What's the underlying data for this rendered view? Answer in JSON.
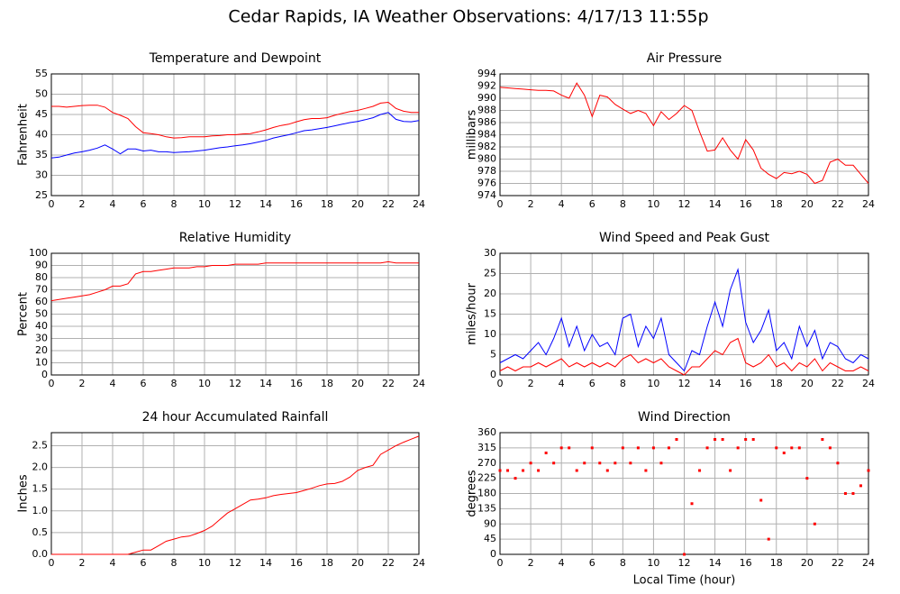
{
  "title": "Cedar Rapids, IA Weather Observations: 4/17/13 11:55p",
  "chart_data": [
    {
      "type": "line",
      "title": "Temperature and Dewpoint",
      "ylabel": "Fahrenheit",
      "x": [
        0,
        0.5,
        1,
        1.5,
        2,
        2.5,
        3,
        3.5,
        4,
        4.5,
        5,
        5.5,
        6,
        6.5,
        7,
        7.5,
        8,
        8.5,
        9,
        9.5,
        10,
        10.5,
        11,
        11.5,
        12,
        12.5,
        13,
        13.5,
        14,
        14.5,
        15,
        15.5,
        16,
        16.5,
        17,
        17.5,
        18,
        18.5,
        19,
        19.5,
        20,
        20.5,
        21,
        21.5,
        22,
        22.5,
        23,
        23.5,
        24
      ],
      "series": [
        {
          "color": "#ff0000",
          "values": [
            47,
            47,
            46.8,
            47,
            47.2,
            47.3,
            47.3,
            46.8,
            45.5,
            44.8,
            44,
            42,
            40.5,
            40.3,
            40,
            39.5,
            39.2,
            39.3,
            39.5,
            39.5,
            39.5,
            39.7,
            39.8,
            40,
            40,
            40.2,
            40.3,
            40.7,
            41.2,
            41.8,
            42.3,
            42.6,
            43.2,
            43.7,
            44,
            44,
            44.2,
            44.8,
            45.3,
            45.7,
            46,
            46.5,
            47,
            47.8,
            48,
            46.5,
            45.8,
            45.5,
            45.5
          ]
        },
        {
          "color": "#0000ff",
          "values": [
            34.3,
            34.5,
            35,
            35.5,
            35.8,
            36.2,
            36.7,
            37.5,
            36.5,
            35.3,
            36.5,
            36.5,
            36,
            36.2,
            35.8,
            35.8,
            35.6,
            35.7,
            35.8,
            36,
            36.2,
            36.5,
            36.8,
            37,
            37.3,
            37.5,
            37.8,
            38.2,
            38.6,
            39.2,
            39.6,
            40,
            40.5,
            41,
            41.2,
            41.5,
            41.8,
            42.2,
            42.6,
            43,
            43.3,
            43.7,
            44.2,
            45,
            45.5,
            43.8,
            43.3,
            43.2,
            43.5
          ]
        }
      ],
      "xlim": [
        0,
        24
      ],
      "xticks": [
        0,
        2,
        4,
        6,
        8,
        10,
        12,
        14,
        16,
        18,
        20,
        22,
        24
      ],
      "ylim": [
        25,
        55
      ],
      "yticks": [
        25,
        30,
        35,
        40,
        45,
        50,
        55
      ],
      "grid": true
    },
    {
      "type": "line",
      "title": "Air Pressure",
      "ylabel": "millibars",
      "x": [
        0,
        0.5,
        1,
        1.5,
        2,
        2.5,
        3,
        3.5,
        4,
        4.5,
        5,
        5.5,
        6,
        6.5,
        7,
        7.5,
        8,
        8.5,
        9,
        9.5,
        10,
        10.5,
        11,
        11.5,
        12,
        12.5,
        13,
        13.5,
        14,
        14.5,
        15,
        15.5,
        16,
        16.5,
        17,
        17.5,
        18,
        18.5,
        19,
        19.5,
        20,
        20.5,
        21,
        21.5,
        22,
        22.5,
        23,
        23.5,
        24
      ],
      "series": [
        {
          "color": "#ff0000",
          "values": [
            991.8,
            991.7,
            991.6,
            991.5,
            991.4,
            991.3,
            991.3,
            991.2,
            990.5,
            990,
            992.5,
            990.5,
            987,
            990.5,
            990.2,
            989,
            988.2,
            987.5,
            988,
            987.5,
            985.5,
            987.8,
            986.5,
            987.5,
            988.8,
            988,
            984.5,
            981.3,
            981.5,
            983.5,
            981.5,
            980,
            983.2,
            981.5,
            978.5,
            977.5,
            976.8,
            977.8,
            977.6,
            978,
            977.5,
            976,
            976.5,
            979.5,
            980,
            979,
            979,
            977.5,
            976
          ]
        }
      ],
      "xlim": [
        0,
        24
      ],
      "xticks": [
        0,
        2,
        4,
        6,
        8,
        10,
        12,
        14,
        16,
        18,
        20,
        22,
        24
      ],
      "ylim": [
        974,
        994
      ],
      "yticks": [
        974,
        976,
        978,
        980,
        982,
        984,
        986,
        988,
        990,
        992,
        994
      ],
      "grid": true
    },
    {
      "type": "line",
      "title": "Relative Humidity",
      "ylabel": "Percent",
      "x": [
        0,
        0.5,
        1,
        1.5,
        2,
        2.5,
        3,
        3.5,
        4,
        4.5,
        5,
        5.5,
        6,
        6.5,
        7,
        7.5,
        8,
        8.5,
        9,
        9.5,
        10,
        10.5,
        11,
        11.5,
        12,
        12.5,
        13,
        13.5,
        14,
        14.5,
        15,
        15.5,
        16,
        16.5,
        17,
        17.5,
        18,
        18.5,
        19,
        19.5,
        20,
        20.5,
        21,
        21.5,
        22,
        22.5,
        23,
        23.5,
        24
      ],
      "series": [
        {
          "color": "#ff0000",
          "values": [
            61,
            62,
            63,
            64,
            65,
            66,
            68,
            70,
            73,
            73,
            75,
            83,
            85,
            85,
            86,
            87,
            88,
            88,
            88,
            89,
            89,
            90,
            90,
            90,
            91,
            91,
            91,
            91,
            92,
            92,
            92,
            92,
            92,
            92,
            92,
            92,
            92,
            92,
            92,
            92,
            92,
            92,
            92,
            92,
            93,
            92,
            92,
            92,
            92
          ]
        }
      ],
      "xlim": [
        0,
        24
      ],
      "xticks": [
        0,
        2,
        4,
        6,
        8,
        10,
        12,
        14,
        16,
        18,
        20,
        22,
        24
      ],
      "ylim": [
        0,
        100
      ],
      "yticks": [
        0,
        10,
        20,
        30,
        40,
        50,
        60,
        70,
        80,
        90,
        100
      ],
      "grid": true
    },
    {
      "type": "line",
      "title": "Wind Speed and Peak Gust",
      "ylabel": "miles/hour",
      "x": [
        0,
        0.5,
        1,
        1.5,
        2,
        2.5,
        3,
        3.5,
        4,
        4.5,
        5,
        5.5,
        6,
        6.5,
        7,
        7.5,
        8,
        8.5,
        9,
        9.5,
        10,
        10.5,
        11,
        11.5,
        12,
        12.5,
        13,
        13.5,
        14,
        14.5,
        15,
        15.5,
        16,
        16.5,
        17,
        17.5,
        18,
        18.5,
        19,
        19.5,
        20,
        20.5,
        21,
        21.5,
        22,
        22.5,
        23,
        23.5,
        24
      ],
      "series": [
        {
          "color": "#0000ff",
          "values": [
            3,
            4,
            5,
            4,
            6,
            8,
            5,
            9,
            14,
            7,
            12,
            6,
            10,
            7,
            8,
            5,
            14,
            15,
            7,
            12,
            9,
            14,
            5,
            3,
            1,
            6,
            5,
            12,
            18,
            12,
            21,
            26,
            13,
            8,
            11,
            16,
            6,
            8,
            4,
            12,
            7,
            11,
            4,
            8,
            7,
            4,
            3,
            5,
            4
          ]
        },
        {
          "color": "#ff0000",
          "values": [
            1,
            2,
            1,
            2,
            2,
            3,
            2,
            3,
            4,
            2,
            3,
            2,
            3,
            2,
            3,
            2,
            4,
            5,
            3,
            4,
            3,
            4,
            2,
            1,
            0,
            2,
            2,
            4,
            6,
            5,
            8,
            9,
            3,
            2,
            3,
            5,
            2,
            3,
            1,
            3,
            2,
            4,
            1,
            3,
            2,
            1,
            1,
            2,
            1
          ]
        }
      ],
      "xlim": [
        0,
        24
      ],
      "xticks": [
        0,
        2,
        4,
        6,
        8,
        10,
        12,
        14,
        16,
        18,
        20,
        22,
        24
      ],
      "ylim": [
        0,
        30
      ],
      "yticks": [
        0,
        5,
        10,
        15,
        20,
        25,
        30
      ],
      "grid": true
    },
    {
      "type": "line",
      "title": "24 hour Accumulated Rainfall",
      "ylabel": "Inches",
      "x": [
        0,
        0.5,
        1,
        1.5,
        2,
        2.5,
        3,
        3.5,
        4,
        4.5,
        5,
        5.5,
        6,
        6.5,
        7,
        7.5,
        8,
        8.5,
        9,
        9.5,
        10,
        10.5,
        11,
        11.5,
        12,
        12.5,
        13,
        13.5,
        14,
        14.5,
        15,
        15.5,
        16,
        16.5,
        17,
        17.5,
        18,
        18.5,
        19,
        19.5,
        20,
        20.5,
        21,
        21.5,
        22,
        22.5,
        23,
        23.5,
        24
      ],
      "series": [
        {
          "color": "#ff0000",
          "values": [
            0,
            0,
            0,
            0,
            0,
            0,
            0,
            0,
            0,
            0,
            0,
            0.05,
            0.1,
            0.1,
            0.2,
            0.3,
            0.35,
            0.4,
            0.42,
            0.48,
            0.55,
            0.65,
            0.8,
            0.95,
            1.05,
            1.15,
            1.25,
            1.27,
            1.3,
            1.35,
            1.38,
            1.4,
            1.42,
            1.47,
            1.52,
            1.58,
            1.62,
            1.63,
            1.68,
            1.78,
            1.93,
            2.0,
            2.05,
            2.3,
            2.4,
            2.5,
            2.58,
            2.65,
            2.72
          ]
        }
      ],
      "xlim": [
        0,
        24
      ],
      "xticks": [
        0,
        2,
        4,
        6,
        8,
        10,
        12,
        14,
        16,
        18,
        20,
        22,
        24
      ],
      "ylim": [
        0,
        2.8
      ],
      "yticks": [
        {
          "value": 0,
          "label": "0.0"
        },
        0.5,
        {
          "value": 1,
          "label": "1.0"
        },
        1.5,
        {
          "value": 2,
          "label": "2.0"
        },
        2.5
      ],
      "grid": true
    },
    {
      "type": "scatter",
      "title": "Wind Direction",
      "ylabel": "degrees",
      "xlabel": "Local Time (hour)",
      "x": [
        0,
        0.5,
        1,
        1.5,
        2,
        2.5,
        3,
        3.5,
        4,
        4.5,
        5,
        5.5,
        6,
        6.5,
        7,
        7.5,
        8,
        8.5,
        9,
        9.5,
        10,
        10.5,
        11,
        11.5,
        12,
        12.5,
        13,
        13.5,
        14,
        14.5,
        15,
        15.5,
        16,
        16.5,
        17,
        17.5,
        18,
        18.5,
        19,
        19.5,
        20,
        20.5,
        21,
        21.5,
        22,
        22.5,
        23,
        23.5,
        24
      ],
      "series": [
        {
          "color": "#ff0000",
          "values": [
            248,
            248,
            225,
            248,
            270,
            248,
            300,
            270,
            315,
            315,
            248,
            270,
            315,
            270,
            248,
            270,
            315,
            270,
            315,
            248,
            315,
            270,
            315,
            340,
            0,
            150,
            248,
            315,
            340,
            340,
            248,
            315,
            340,
            340,
            160,
            45,
            315,
            300,
            315,
            315,
            225,
            90,
            340,
            315,
            270,
            180,
            180,
            203,
            248
          ]
        }
      ],
      "xlim": [
        0,
        24
      ],
      "xticks": [
        0,
        2,
        4,
        6,
        8,
        10,
        12,
        14,
        16,
        18,
        20,
        22,
        24
      ],
      "ylim": [
        0,
        360
      ],
      "yticks": [
        0,
        45,
        90,
        135,
        180,
        225,
        270,
        315,
        360
      ],
      "grid": true
    }
  ]
}
